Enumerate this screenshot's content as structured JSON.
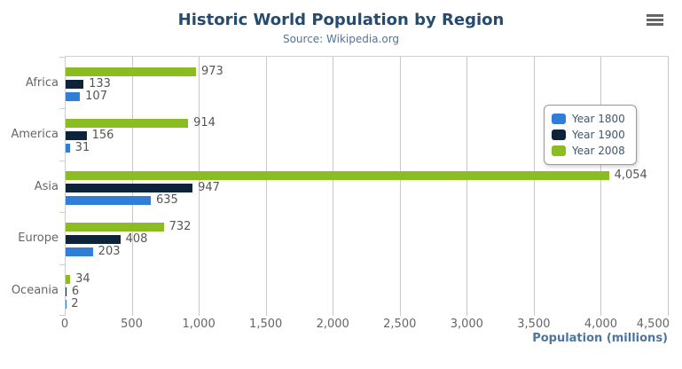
{
  "chart_data": {
    "type": "bar",
    "orientation": "horizontal",
    "title": "Historic World Population by Region",
    "subtitle": "Source: Wikipedia.org",
    "categories": [
      "Africa",
      "America",
      "Asia",
      "Europe",
      "Oceania"
    ],
    "series": [
      {
        "name": "Year 1800",
        "color": "#2f7ed8",
        "values": [
          107,
          31,
          635,
          203,
          2
        ]
      },
      {
        "name": "Year 1900",
        "color": "#0d233a",
        "values": [
          133,
          156,
          947,
          408,
          6
        ]
      },
      {
        "name": "Year 2008",
        "color": "#8bbc21",
        "values": [
          973,
          914,
          4054,
          732,
          34
        ]
      }
    ],
    "bar_render_order_top_to_bottom": [
      "Year 2008",
      "Year 1900",
      "Year 1800"
    ],
    "data_labels_shown": true,
    "xlabel": "Population (millions)",
    "xlim": [
      0,
      4500
    ],
    "x_tick_step": 500,
    "x_tick_labels": [
      "0",
      "500",
      "1,000",
      "1,500",
      "2,000",
      "2,500",
      "3,000",
      "3,500",
      "4,000",
      "4,500"
    ],
    "grid": true,
    "legend_position": "right-inside"
  },
  "icons": {
    "context_menu": "hamburger"
  }
}
